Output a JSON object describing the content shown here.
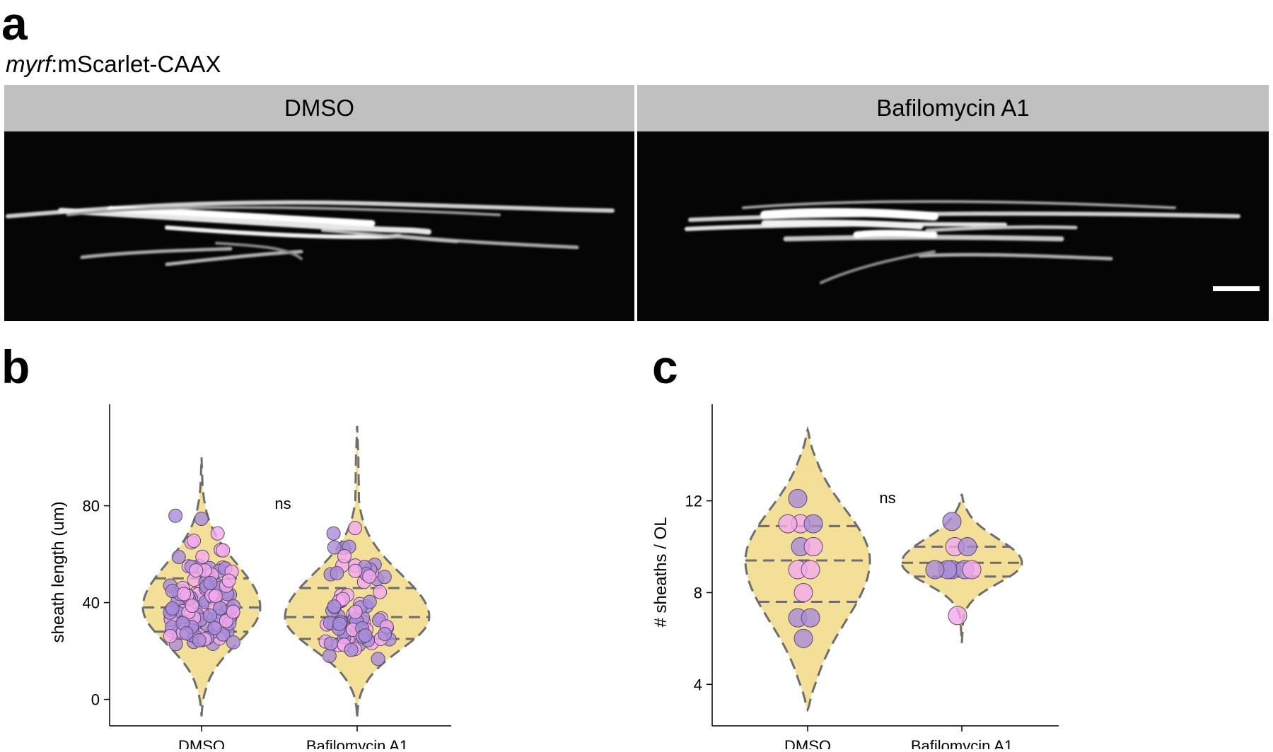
{
  "panel_a": {
    "letter": "a",
    "subtitle_italic": "myrf",
    "subtitle_rest": ":mScarlet-CAAX",
    "conditions": [
      "DMSO",
      "Bafilomycin A1"
    ]
  },
  "panel_b_letter": "b",
  "panel_c_letter": "c",
  "chart_data": [
    {
      "type": "violin",
      "panel": "b",
      "ylabel": "sheath length (um)",
      "categories": [
        "DMSO",
        "Bafilomycin A1"
      ],
      "yticks": [
        0,
        40,
        80
      ],
      "ylim": [
        -8,
        119
      ],
      "annotation": "ns",
      "quartiles": [
        [
          28,
          38,
          50
        ],
        [
          25,
          34,
          46
        ]
      ],
      "range": [
        [
          -7,
          100
        ],
        [
          -7,
          113
        ]
      ],
      "n_points": [
        120,
        80
      ],
      "approx_point_range": [
        [
          12,
          85
        ],
        [
          8,
          98
        ]
      ]
    },
    {
      "type": "violin",
      "panel": "c",
      "ylabel": "# sheaths / OL",
      "categories": [
        "DMSO",
        "Bafilomycin A1"
      ],
      "yticks": [
        4,
        8,
        12
      ],
      "ylim": [
        2.5,
        15.9
      ],
      "annotation": "ns",
      "quartiles": [
        [
          7.6,
          9.4,
          10.9
        ],
        [
          8.7,
          9.3,
          10.0
        ]
      ],
      "range": [
        [
          2.9,
          15.1
        ],
        [
          5.8,
          12.3
        ]
      ],
      "points": [
        {
          "x": "DMSO",
          "y": 12.1,
          "tone": "purple"
        },
        {
          "x": "DMSO",
          "y": 11.0,
          "tone": "pink"
        },
        {
          "x": "DMSO",
          "y": 11.0,
          "tone": "purple"
        },
        {
          "x": "DMSO",
          "y": 11.0,
          "tone": "pink"
        },
        {
          "x": "DMSO",
          "y": 10.0,
          "tone": "purple"
        },
        {
          "x": "DMSO",
          "y": 10.0,
          "tone": "pink"
        },
        {
          "x": "DMSO",
          "y": 9.0,
          "tone": "pink"
        },
        {
          "x": "DMSO",
          "y": 9.0,
          "tone": "pink"
        },
        {
          "x": "DMSO",
          "y": 8.0,
          "tone": "pink"
        },
        {
          "x": "DMSO",
          "y": 6.9,
          "tone": "purple"
        },
        {
          "x": "DMSO",
          "y": 6.9,
          "tone": "purple"
        },
        {
          "x": "DMSO",
          "y": 6.0,
          "tone": "purple"
        },
        {
          "x": "Bafilomycin A1",
          "y": 11.1,
          "tone": "purple"
        },
        {
          "x": "Bafilomycin A1",
          "y": 10.0,
          "tone": "pink"
        },
        {
          "x": "Bafilomycin A1",
          "y": 10.0,
          "tone": "purple"
        },
        {
          "x": "Bafilomycin A1",
          "y": 9.0,
          "tone": "purple"
        },
        {
          "x": "Bafilomycin A1",
          "y": 9.0,
          "tone": "purple"
        },
        {
          "x": "Bafilomycin A1",
          "y": 9.0,
          "tone": "purple"
        },
        {
          "x": "Bafilomycin A1",
          "y": 9.0,
          "tone": "pink"
        },
        {
          "x": "Bafilomycin A1",
          "y": 9.0,
          "tone": "purple"
        },
        {
          "x": "Bafilomycin A1",
          "y": 7.0,
          "tone": "pink"
        }
      ]
    }
  ],
  "colors": {
    "violin_fill": "#f3df97",
    "violin_stroke": "#6e6e6e",
    "point_pink": "#f4a9ee",
    "point_purple": "#a98bda",
    "point_stroke": "#5a4a6a",
    "header_bar": "#c0c0c0"
  }
}
